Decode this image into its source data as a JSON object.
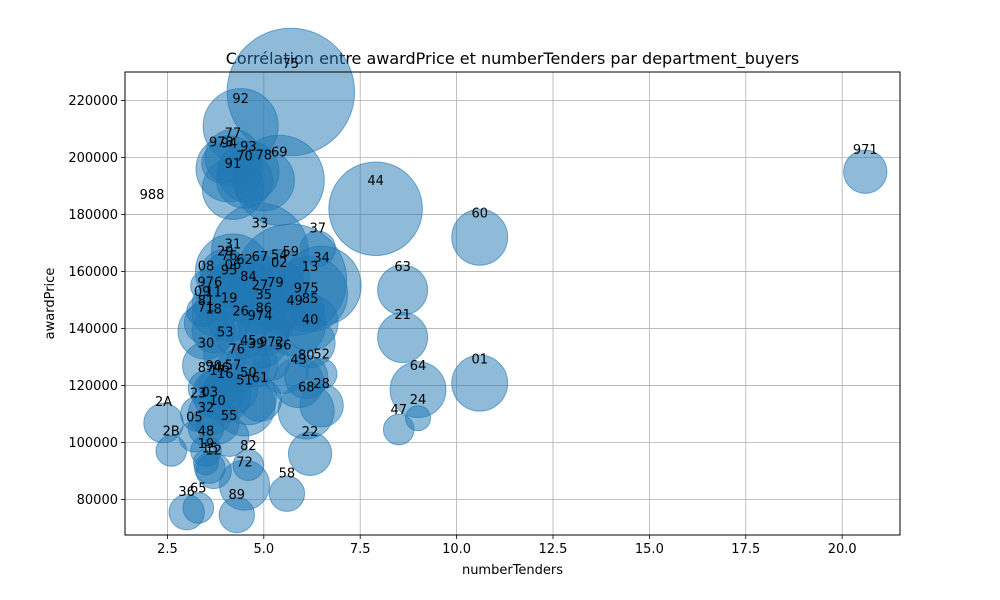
{
  "chart_data": {
    "type": "scatter",
    "title": "Corrélation entre awardPrice et numberTenders par department_buyers",
    "xlabel": "numberTenders",
    "ylabel": "awardPrice",
    "xlim": [
      1.4,
      21.5
    ],
    "ylim": [
      67500,
      230000
    ],
    "xticks": [
      2.5,
      5.0,
      7.5,
      10.0,
      12.5,
      15.0,
      17.5,
      20.0
    ],
    "xtick_labels": [
      "2.5",
      "5.0",
      "7.5",
      "10.0",
      "12.5",
      "15.0",
      "17.5",
      "20.0"
    ],
    "yticks": [
      80000,
      100000,
      120000,
      140000,
      160000,
      180000,
      200000,
      220000
    ],
    "ytick_labels": [
      "80000",
      "100000",
      "120000",
      "140000",
      "160000",
      "180000",
      "200000",
      "220000"
    ],
    "grid": true,
    "color": "#1f77b4",
    "points": [
      {
        "label": "75",
        "x": 5.7,
        "y": 223000,
        "size": 2600
      },
      {
        "label": "92",
        "x": 4.4,
        "y": 211000,
        "size": 900
      },
      {
        "label": "973",
        "x": 3.9,
        "y": 198000,
        "size": 250
      },
      {
        "label": "77",
        "x": 4.2,
        "y": 200000,
        "size": 500
      },
      {
        "label": "94",
        "x": 4.1,
        "y": 196000,
        "size": 700
      },
      {
        "label": "93",
        "x": 4.6,
        "y": 195000,
        "size": 600
      },
      {
        "label": "70",
        "x": 4.5,
        "y": 192000,
        "size": 500
      },
      {
        "label": "78",
        "x": 5.0,
        "y": 192000,
        "size": 600
      },
      {
        "label": "91",
        "x": 4.2,
        "y": 189000,
        "size": 600
      },
      {
        "label": "69",
        "x": 5.4,
        "y": 192000,
        "size": 1300
      },
      {
        "label": "44",
        "x": 7.9,
        "y": 182000,
        "size": 1400
      },
      {
        "label": "971",
        "x": 20.6,
        "y": 195000,
        "size": 300
      },
      {
        "label": "988",
        "x": 2.1,
        "y": 182000,
        "size": 0
      },
      {
        "label": "60",
        "x": 10.6,
        "y": 172000,
        "size": 500
      },
      {
        "label": "33",
        "x": 4.9,
        "y": 167000,
        "size": 1500
      },
      {
        "label": "37",
        "x": 6.4,
        "y": 168000,
        "size": 200
      },
      {
        "label": "31",
        "x": 4.2,
        "y": 160000,
        "size": 900
      },
      {
        "label": "29",
        "x": 4.0,
        "y": 159000,
        "size": 400
      },
      {
        "label": "76",
        "x": 4.1,
        "y": 157000,
        "size": 500
      },
      {
        "label": "62",
        "x": 4.5,
        "y": 156000,
        "size": 400
      },
      {
        "label": "67",
        "x": 4.9,
        "y": 157000,
        "size": 400
      },
      {
        "label": "54",
        "x": 5.4,
        "y": 157000,
        "size": 600
      },
      {
        "label": "59",
        "x": 5.7,
        "y": 157000,
        "size": 2000
      },
      {
        "label": "02",
        "x": 5.4,
        "y": 155000,
        "size": 400
      },
      {
        "label": "34",
        "x": 6.5,
        "y": 155000,
        "size": 1000
      },
      {
        "label": "13",
        "x": 6.2,
        "y": 152000,
        "size": 900
      },
      {
        "label": "63",
        "x": 8.6,
        "y": 153500,
        "size": 400
      },
      {
        "label": "08",
        "x": 3.5,
        "y": 155000,
        "size": 150
      },
      {
        "label": "06",
        "x": 4.2,
        "y": 154000,
        "size": 500
      },
      {
        "label": "95",
        "x": 4.1,
        "y": 152000,
        "size": 500
      },
      {
        "label": "84",
        "x": 4.6,
        "y": 150000,
        "size": 400
      },
      {
        "label": "976",
        "x": 3.6,
        "y": 149000,
        "size": 200
      },
      {
        "label": "27",
        "x": 4.9,
        "y": 147000,
        "size": 400
      },
      {
        "label": "79",
        "x": 5.3,
        "y": 148000,
        "size": 400
      },
      {
        "label": "975",
        "x": 6.1,
        "y": 147000,
        "size": 200
      },
      {
        "label": "09",
        "x": 3.4,
        "y": 146000,
        "size": 150
      },
      {
        "label": "11",
        "x": 3.7,
        "y": 145000,
        "size": 300
      },
      {
        "label": "19",
        "x": 4.1,
        "y": 143000,
        "size": 300
      },
      {
        "label": "35",
        "x": 5.0,
        "y": 143000,
        "size": 600
      },
      {
        "label": "85",
        "x": 6.2,
        "y": 142000,
        "size": 500
      },
      {
        "label": "49",
        "x": 5.8,
        "y": 141000,
        "size": 600
      },
      {
        "label": "81",
        "x": 3.5,
        "y": 142000,
        "size": 300
      },
      {
        "label": "71",
        "x": 3.5,
        "y": 139000,
        "size": 500
      },
      {
        "label": "18",
        "x": 3.7,
        "y": 139000,
        "size": 300
      },
      {
        "label": "26",
        "x": 4.4,
        "y": 138000,
        "size": 400
      },
      {
        "label": "86",
        "x": 5.0,
        "y": 139000,
        "size": 400
      },
      {
        "label": "974",
        "x": 4.9,
        "y": 136000,
        "size": 500
      },
      {
        "label": "40",
        "x": 6.2,
        "y": 135000,
        "size": 400
      },
      {
        "label": "21",
        "x": 8.6,
        "y": 136800,
        "size": 400
      },
      {
        "label": "53",
        "x": 4.0,
        "y": 131000,
        "size": 300
      },
      {
        "label": "30",
        "x": 3.5,
        "y": 127000,
        "size": 350
      },
      {
        "label": "45",
        "x": 4.6,
        "y": 128000,
        "size": 300
      },
      {
        "label": "39",
        "x": 4.8,
        "y": 127000,
        "size": 300
      },
      {
        "label": "972",
        "x": 5.2,
        "y": 128000,
        "size": 200
      },
      {
        "label": "56",
        "x": 5.5,
        "y": 126000,
        "size": 400
      },
      {
        "label": "52",
        "x": 6.5,
        "y": 124000,
        "size": 150
      },
      {
        "label": "76b",
        "display": "76",
        "x": 4.3,
        "y": 125000,
        "size": 300
      },
      {
        "label": "80",
        "x": 6.1,
        "y": 123000,
        "size": 300
      },
      {
        "label": "43",
        "x": 5.9,
        "y": 121000,
        "size": 400
      },
      {
        "label": "64",
        "x": 9.0,
        "y": 118500,
        "size": 500
      },
      {
        "label": "87",
        "x": 3.5,
        "y": 119000,
        "size": 200
      },
      {
        "label": "90",
        "x": 3.7,
        "y": 120000,
        "size": 150
      },
      {
        "label": "46",
        "x": 3.9,
        "y": 119000,
        "size": 200
      },
      {
        "label": "57",
        "x": 4.2,
        "y": 119000,
        "size": 400
      },
      {
        "label": "17",
        "x": 3.8,
        "y": 117000,
        "size": 400
      },
      {
        "label": "16",
        "x": 4.0,
        "y": 116000,
        "size": 400
      },
      {
        "label": "50",
        "x": 4.6,
        "y": 116000,
        "size": 500
      },
      {
        "label": "61",
        "x": 4.9,
        "y": 115000,
        "size": 300
      },
      {
        "label": "31b",
        "display": "51",
        "x": 4.5,
        "y": 113000,
        "size": 600
      },
      {
        "label": "28",
        "x": 6.5,
        "y": 113000,
        "size": 300
      },
      {
        "label": "68",
        "x": 6.1,
        "y": 111000,
        "size": 500
      },
      {
        "label": "24",
        "x": 9.0,
        "y": 108500,
        "size": 100
      },
      {
        "label": "47",
        "x": 8.5,
        "y": 104500,
        "size": 150
      },
      {
        "label": "2A",
        "x": 2.4,
        "y": 106800,
        "size": 250
      },
      {
        "label": "23",
        "x": 3.3,
        "y": 110000,
        "size": 200
      },
      {
        "label": "03",
        "x": 3.6,
        "y": 110000,
        "size": 300
      },
      {
        "label": "10",
        "x": 3.8,
        "y": 107000,
        "size": 300
      },
      {
        "label": "32",
        "x": 3.5,
        "y": 105000,
        "size": 200
      },
      {
        "label": "05",
        "x": 3.2,
        "y": 102000,
        "size": 150
      },
      {
        "label": "55",
        "x": 4.1,
        "y": 102000,
        "size": 250
      },
      {
        "label": "48",
        "x": 3.5,
        "y": 97000,
        "size": 150
      },
      {
        "label": "22",
        "x": 6.2,
        "y": 96000,
        "size": 300
      },
      {
        "label": "2B",
        "x": 2.6,
        "y": 97000,
        "size": 150
      },
      {
        "label": "82",
        "x": 4.6,
        "y": 92000,
        "size": 150
      },
      {
        "label": "15",
        "x": 3.6,
        "y": 91000,
        "size": 150
      },
      {
        "label": "12",
        "x": 3.7,
        "y": 90000,
        "size": 200
      },
      {
        "label": "19b",
        "display": "19",
        "x": 3.5,
        "y": 93000,
        "size": 100
      },
      {
        "label": "72",
        "x": 4.5,
        "y": 85000,
        "size": 400
      },
      {
        "label": "58",
        "x": 5.6,
        "y": 82000,
        "size": 200
      },
      {
        "label": "36",
        "x": 3.0,
        "y": 75500,
        "size": 200
      },
      {
        "label": "65",
        "x": 3.3,
        "y": 77000,
        "size": 150
      },
      {
        "label": "89",
        "x": 4.3,
        "y": 74500,
        "size": 200
      },
      {
        "label": "01",
        "x": 10.6,
        "y": 120800,
        "size": 500
      }
    ]
  }
}
